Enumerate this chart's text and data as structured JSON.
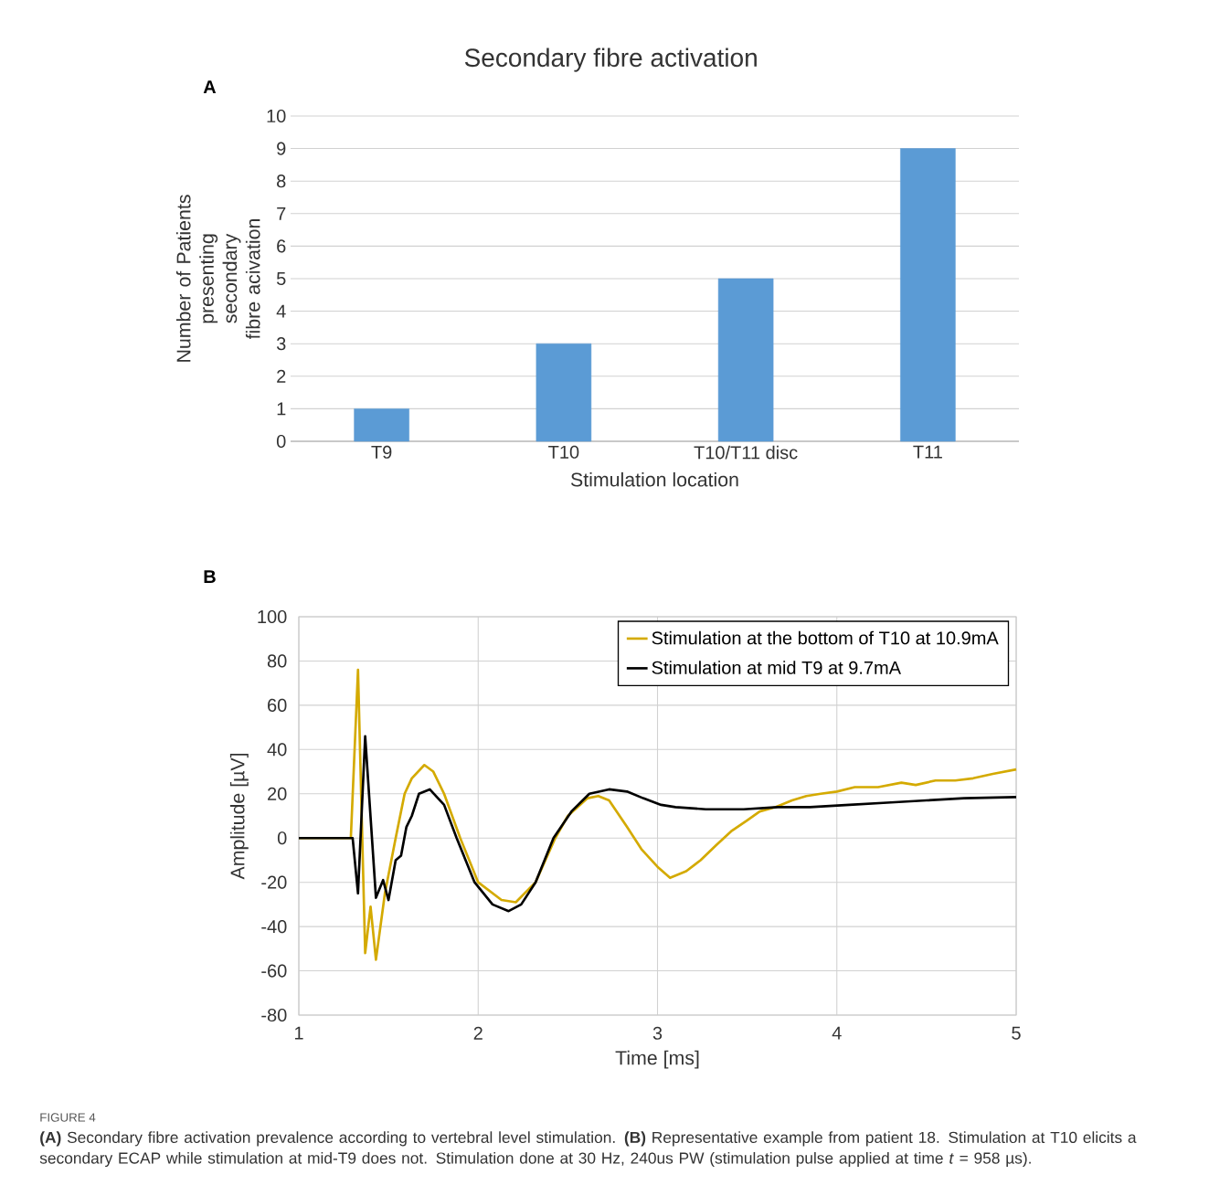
{
  "chart_data": [
    {
      "type": "bar",
      "title": "Secondary fibre activation",
      "xlabel": "Stimulation location",
      "ylabel": "Number of Patients presenting secondary fibre acivation",
      "categories": [
        "T9",
        "T10",
        "T10/T11  disc",
        "T11"
      ],
      "values": [
        1,
        3,
        5,
        9
      ],
      "color": "#5b9bd5",
      "ylim": [
        0,
        10
      ],
      "yticks": [
        0,
        1,
        2,
        3,
        4,
        5,
        6,
        7,
        8,
        9,
        10
      ],
      "grid": "y",
      "legend": false,
      "annotations": [
        "A"
      ]
    },
    {
      "type": "line",
      "xlabel": "Time [ms]",
      "ylabel": "Amplitude [µV]",
      "xlim": [
        1,
        5
      ],
      "xticks": [
        1,
        2,
        3,
        4,
        5
      ],
      "ylim": [
        -80,
        100
      ],
      "yticks": [
        -80,
        -60,
        -40,
        -20,
        0,
        20,
        40,
        60,
        80,
        100
      ],
      "grid": true,
      "legend": "top right",
      "marker": "none",
      "line_style": "solid",
      "series": [
        {
          "name": "Stimulation at the bottom of T10 at 10.9mA",
          "color": "#d4aa00",
          "x": [
            1.0,
            1.29,
            1.33,
            1.37,
            1.4,
            1.43,
            1.48,
            1.54,
            1.59,
            1.63,
            1.7,
            1.75,
            1.81,
            1.9,
            2.0,
            2.13,
            2.21,
            2.32,
            2.43,
            2.5,
            2.61,
            2.67,
            2.73,
            2.83,
            2.91,
            3.0,
            3.07,
            3.16,
            3.24,
            3.33,
            3.41,
            3.5,
            3.57,
            3.66,
            3.75,
            3.83,
            3.91,
            4.0,
            4.1,
            4.23,
            4.36,
            4.44,
            4.55,
            4.66,
            4.76,
            4.87,
            5.0
          ],
          "values": [
            0,
            0,
            76,
            -52,
            -31,
            -55,
            -25,
            0,
            20,
            27,
            33,
            30,
            20,
            0,
            -20,
            -28,
            -29,
            -20,
            0,
            10,
            18,
            19,
            17,
            5,
            -5,
            -13,
            -18,
            -15,
            -10,
            -3,
            3,
            8,
            12,
            14,
            17,
            19,
            20,
            21,
            23,
            23,
            25,
            24,
            26,
            26,
            27,
            29,
            31
          ]
        },
        {
          "name": "Stimulation at mid T9 at 9.7mA",
          "color": "#000000",
          "x": [
            1.0,
            1.3,
            1.33,
            1.37,
            1.43,
            1.47,
            1.5,
            1.54,
            1.57,
            1.6,
            1.63,
            1.67,
            1.73,
            1.81,
            1.88,
            1.98,
            2.08,
            2.17,
            2.24,
            2.32,
            2.42,
            2.52,
            2.62,
            2.73,
            2.83,
            2.92,
            3.02,
            3.1,
            3.27,
            3.48,
            3.67,
            3.85,
            4.07,
            4.28,
            4.5,
            4.71,
            5.0
          ],
          "values": [
            0,
            0,
            -25,
            46,
            -27,
            -19,
            -28,
            -10,
            -8,
            5,
            10,
            20,
            22,
            15,
            0,
            -20,
            -30,
            -33,
            -30,
            -20,
            0,
            12,
            20,
            22,
            21,
            18,
            15,
            14,
            13,
            13,
            14,
            14,
            15,
            16,
            17,
            18,
            18.5
          ]
        }
      ],
      "annotations": [
        "B",
        "FIGURE 4",
        "**(A)** Secondary fibre activation prevalence according to vertebral level stimulation. **(B)** Representative example from patient 18. Stimulation at T10 elicits a secondary ECAP while stimulation at mid-T9 does not. Stimulation done at 30 Hz, 240us PW (stimulation pulse applied at time *t* = 958 µs)."
      ]
    }
  ]
}
